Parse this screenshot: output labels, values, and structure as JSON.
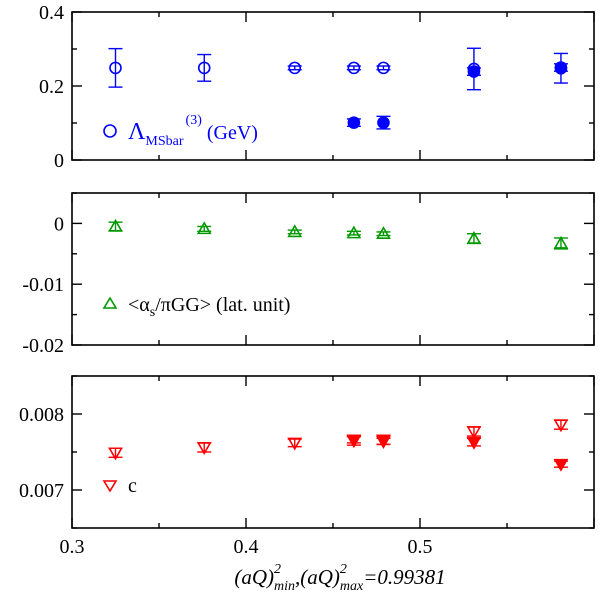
{
  "chart_data": [
    {
      "type": "scatter",
      "panel": "top",
      "xlim": [
        0.3,
        0.6
      ],
      "ylim": [
        0,
        0.4
      ],
      "yticks": [
        "0",
        "0.2",
        "0.4"
      ],
      "legend_placement": "bottom-left",
      "color": "#0000ff",
      "series": [
        {
          "name": "Λ_MSbar^(3) (GeV)",
          "marker": "circle-open",
          "x": [
            0.325,
            0.376,
            0.428,
            0.462,
            0.479,
            0.531,
            0.581
          ],
          "y": [
            0.249,
            0.249,
            0.249,
            0.249,
            0.249,
            0.246,
            0.248
          ],
          "err": [
            0.052,
            0.036,
            0.005,
            0.005,
            0.005,
            0.056,
            0.04
          ]
        },
        {
          "name": "",
          "marker": "circle-filled",
          "x": [
            0.462,
            0.479,
            0.531,
            0.581
          ],
          "y": [
            0.101,
            0.101,
            0.239,
            0.25
          ],
          "err": [
            0.01,
            0.017,
            0.01,
            0.01
          ]
        }
      ]
    },
    {
      "type": "scatter",
      "panel": "middle",
      "xlim": [
        0.3,
        0.6
      ],
      "ylim": [
        -0.02,
        0.005
      ],
      "yticks": [
        "0",
        "-0.01",
        "-0.02"
      ],
      "legend_placement": "bottom-left",
      "color": "#009900",
      "series": [
        {
          "name": "<α_s/πGG> (lat. unit)",
          "marker": "triangle-up-open",
          "x": [
            0.325,
            0.376,
            0.428,
            0.462,
            0.479,
            0.531,
            0.581
          ],
          "y": [
            -0.0005,
            -0.0009,
            -0.0014,
            -0.0016,
            -0.0017,
            -0.0025,
            -0.0033
          ],
          "err": [
            0.0007,
            0.0004,
            0.0003,
            0.0003,
            0.0003,
            0.0008,
            0.0009
          ]
        }
      ]
    },
    {
      "type": "scatter",
      "panel": "bottom",
      "xlim": [
        0.3,
        0.6
      ],
      "ylim": [
        0.0065,
        0.0085
      ],
      "yticks": [
        "0.007",
        "0.008"
      ],
      "xticks": [
        "0.3",
        "0.4",
        "0.5"
      ],
      "xlabel": "(aQ)^2_min,(aQ)^2_max=0.99381",
      "legend_placement": "bottom-left",
      "color": "#ff0000",
      "series": [
        {
          "name": "c",
          "marker": "triangle-down-open",
          "x": [
            0.325,
            0.376,
            0.428,
            0.462,
            0.479,
            0.531,
            0.581
          ],
          "y": [
            0.00749,
            0.00756,
            0.00762,
            0.00765,
            0.00766,
            0.00777,
            0.00786
          ],
          "err": [
            6e-05,
            6e-05,
            5e-05,
            6e-05,
            6e-05,
            6e-05,
            6e-05
          ]
        },
        {
          "name": "",
          "marker": "triangle-down-filled",
          "x": [
            0.462,
            0.479,
            0.531,
            0.581
          ],
          "y": [
            0.00766,
            0.00764,
            0.00763,
            0.00734
          ],
          "err": [
            4e-05,
            4e-05,
            5e-05,
            4e-05
          ]
        }
      ]
    }
  ],
  "legend": {
    "top": {
      "symbol": "Λ",
      "sub": "MSbar",
      "sup": "(3)",
      "rest": " (GeV)"
    },
    "middle": {
      "lead": "<α",
      "sub": "s",
      "rest": "/πGG> (lat. unit)"
    },
    "bottom": {
      "text": "c"
    }
  },
  "xaxis_title": {
    "base1": "(aQ)",
    "sup1": "2",
    "sub1": "min",
    "mid": ",(aQ)",
    "sup2": "2",
    "sub2": "max",
    "tail": "=0.99381"
  }
}
